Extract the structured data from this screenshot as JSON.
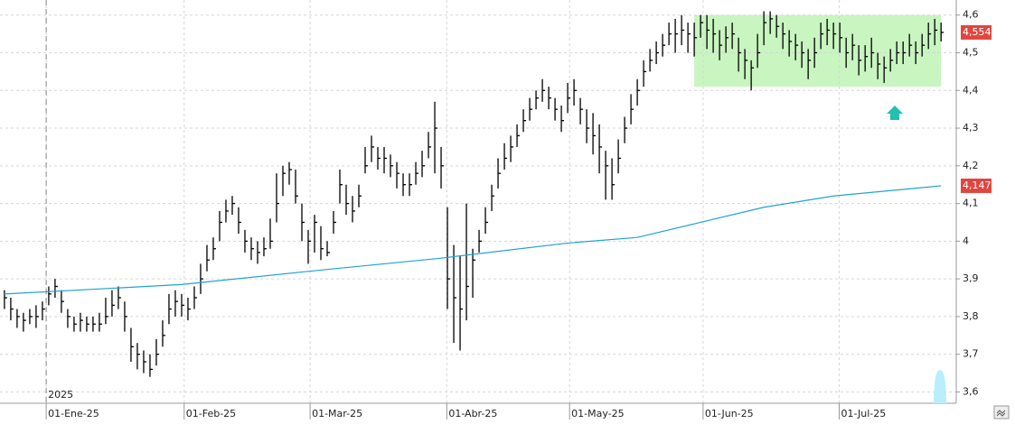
{
  "chart_data": {
    "type": "ohlc",
    "annotation_year": "2025",
    "high": [
      3.87,
      3.85,
      3.82,
      3.81,
      3.82,
      3.83,
      3.84,
      3.88,
      3.9,
      3.87,
      3.82,
      3.8,
      3.81,
      3.8,
      3.8,
      3.81,
      3.85,
      3.87,
      3.88,
      3.84,
      3.77,
      3.73,
      3.71,
      3.7,
      3.74,
      3.79,
      3.86,
      3.87,
      3.86,
      3.85,
      3.88,
      3.94,
      3.99,
      4.01,
      4.08,
      4.11,
      4.12,
      4.09,
      4.03,
      4.01,
      4.0,
      4.01,
      4.06,
      4.18,
      4.2,
      4.21,
      4.19,
      4.1,
      4.03,
      4.07,
      4.04,
      4.0,
      4.08,
      4.19,
      4.15,
      4.12,
      4.15,
      4.25,
      4.28,
      4.25,
      4.25,
      4.23,
      4.21,
      4.18,
      4.18,
      4.21,
      4.24,
      4.29,
      4.37,
      4.25,
      4.09,
      3.99,
      3.96,
      4.1,
      3.98,
      4.03,
      4.09,
      4.15,
      4.22,
      4.26,
      4.28,
      4.31,
      4.35,
      4.38,
      4.4,
      4.43,
      4.41,
      4.38,
      4.36,
      4.42,
      4.43,
      4.38,
      4.35,
      4.34,
      4.31,
      4.24,
      4.22,
      4.27,
      4.33,
      4.39,
      4.43,
      4.48,
      4.51,
      4.53,
      4.55,
      4.58,
      4.59,
      4.6,
      4.58,
      4.58,
      4.6,
      4.6,
      4.59,
      4.56,
      4.57,
      4.58,
      4.54,
      4.51,
      4.48,
      4.55,
      4.61,
      4.61,
      4.6,
      4.58,
      4.56,
      4.55,
      4.53,
      4.51,
      4.54,
      4.58,
      4.59,
      4.58,
      4.58,
      4.54,
      4.55,
      4.52,
      4.52,
      4.54,
      4.5,
      4.49,
      4.51,
      4.53,
      4.53,
      4.55,
      4.53,
      4.55,
      4.58,
      4.59,
      4.58
    ],
    "low": [
      3.82,
      3.79,
      3.77,
      3.76,
      3.78,
      3.77,
      3.79,
      3.83,
      3.85,
      3.81,
      3.77,
      3.76,
      3.76,
      3.76,
      3.76,
      3.76,
      3.78,
      3.8,
      3.82,
      3.76,
      3.68,
      3.66,
      3.65,
      3.64,
      3.67,
      3.72,
      3.78,
      3.8,
      3.8,
      3.79,
      3.82,
      3.86,
      3.92,
      3.95,
      4.0,
      4.05,
      4.07,
      4.02,
      3.97,
      3.95,
      3.94,
      3.96,
      3.98,
      4.05,
      4.12,
      4.15,
      4.1,
      4.0,
      3.94,
      3.97,
      3.95,
      3.96,
      4.02,
      4.1,
      4.07,
      4.05,
      4.09,
      4.18,
      4.21,
      4.19,
      4.18,
      4.17,
      4.14,
      4.12,
      4.12,
      4.15,
      4.17,
      4.22,
      4.18,
      4.14,
      3.82,
      3.73,
      3.71,
      3.79,
      3.85,
      3.97,
      4.02,
      4.08,
      4.14,
      4.19,
      4.21,
      4.25,
      4.29,
      4.32,
      4.35,
      4.37,
      4.35,
      4.32,
      4.29,
      4.34,
      4.36,
      4.31,
      4.26,
      4.23,
      4.18,
      4.11,
      4.11,
      4.18,
      4.26,
      4.31,
      4.36,
      4.41,
      4.45,
      4.47,
      4.49,
      4.52,
      4.5,
      4.52,
      4.5,
      4.49,
      4.54,
      4.51,
      4.5,
      4.48,
      4.5,
      4.51,
      4.45,
      4.43,
      4.4,
      4.46,
      4.52,
      4.55,
      4.54,
      4.51,
      4.49,
      4.48,
      4.46,
      4.43,
      4.46,
      4.51,
      4.52,
      4.51,
      4.5,
      4.46,
      4.48,
      4.44,
      4.45,
      4.46,
      4.43,
      4.42,
      4.45,
      4.47,
      4.47,
      4.49,
      4.47,
      4.49,
      4.51,
      4.52,
      4.53
    ],
    "close": [
      3.85,
      3.82,
      3.8,
      3.79,
      3.8,
      3.8,
      3.82,
      3.86,
      3.88,
      3.84,
      3.8,
      3.78,
      3.79,
      3.78,
      3.78,
      3.78,
      3.8,
      3.83,
      3.85,
      3.8,
      3.72,
      3.7,
      3.68,
      3.66,
      3.7,
      3.75,
      3.82,
      3.84,
      3.83,
      3.82,
      3.85,
      3.9,
      3.95,
      3.98,
      4.05,
      4.08,
      4.1,
      4.05,
      4.0,
      3.98,
      3.97,
      3.98,
      4.0,
      4.1,
      4.18,
      4.19,
      4.12,
      4.05,
      4.0,
      4.05,
      3.98,
      3.97,
      4.05,
      4.15,
      4.1,
      4.08,
      4.12,
      4.2,
      4.25,
      4.22,
      4.22,
      4.2,
      4.18,
      4.15,
      4.15,
      4.18,
      4.2,
      4.25,
      4.3,
      4.2,
      3.9,
      3.85,
      3.82,
      3.88,
      3.95,
      4.0,
      4.05,
      4.12,
      4.18,
      4.22,
      4.25,
      4.28,
      4.32,
      4.35,
      4.38,
      4.4,
      4.38,
      4.35,
      4.32,
      4.38,
      4.4,
      4.35,
      4.3,
      4.28,
      4.25,
      4.2,
      4.15,
      4.22,
      4.3,
      4.35,
      4.4,
      4.45,
      4.48,
      4.5,
      4.52,
      4.55,
      4.55,
      4.56,
      4.55,
      4.54,
      4.58,
      4.56,
      4.55,
      4.52,
      4.54,
      4.55,
      4.5,
      4.48,
      4.46,
      4.5,
      4.58,
      4.59,
      4.57,
      4.55,
      4.53,
      4.52,
      4.5,
      4.48,
      4.5,
      4.55,
      4.56,
      4.55,
      4.54,
      4.5,
      4.52,
      4.48,
      4.49,
      4.5,
      4.47,
      4.46,
      4.48,
      4.5,
      4.5,
      4.52,
      4.5,
      4.52,
      4.55,
      4.56,
      4.554
    ],
    "bar_color": "#000000",
    "moving_average": {
      "color": "#1fa2d6",
      "x": [
        0,
        28,
        48,
        69,
        89,
        100,
        110,
        120,
        131,
        148
      ],
      "values": [
        3.86,
        3.885,
        3.92,
        3.955,
        3.995,
        4.01,
        4.05,
        4.09,
        4.12,
        4.147
      ]
    },
    "highlight": {
      "x": [
        109,
        148
      ],
      "y": [
        4.41,
        4.6
      ],
      "color": "#c8f5c0"
    },
    "last_price": {
      "value": 4.554,
      "label": "4,554"
    },
    "ma_last": {
      "value": 4.147,
      "label": "4,147"
    },
    "xlim": [
      -0.7,
      150.4
    ],
    "ylim": [
      3.57,
      4.64
    ],
    "xticks": [
      {
        "value": 6.6,
        "label": "01-Ene-25"
      },
      {
        "value": 28.4,
        "label": "01-Feb-25"
      },
      {
        "value": 48.3,
        "label": "01-Mar-25"
      },
      {
        "value": 69.9,
        "label": "01-Abr-25"
      },
      {
        "value": 89.3,
        "label": "01-May-25"
      },
      {
        "value": 110.4,
        "label": "01-Jun-25"
      },
      {
        "value": 131.9,
        "label": "01-Jul-25"
      }
    ],
    "yticks": [
      {
        "value": 3.6,
        "label": "3,6"
      },
      {
        "value": 3.7,
        "label": "3,7"
      },
      {
        "value": 3.8,
        "label": "3,8"
      },
      {
        "value": 3.9,
        "label": "3,9"
      },
      4,
      {
        "value": 4.1,
        "label": "4,1"
      },
      {
        "value": 4.2,
        "label": "4,2"
      },
      {
        "value": 4.3,
        "label": "4,3"
      },
      {
        "value": 4.4,
        "label": "4,4"
      },
      {
        "value": 4.5,
        "label": "4,5"
      },
      {
        "value": 4.6,
        "label": "4,6"
      }
    ],
    "grid": true
  }
}
